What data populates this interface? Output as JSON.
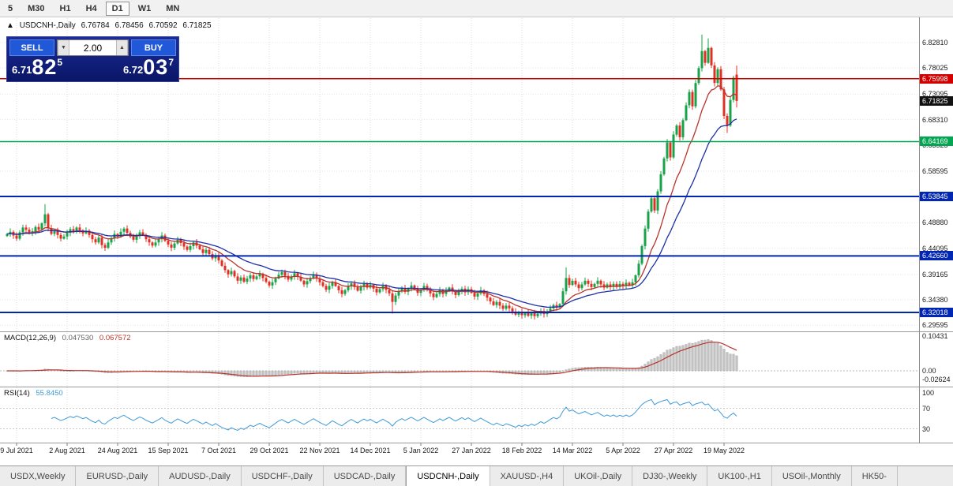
{
  "toolbar": {
    "timeframes": [
      "5",
      "M30",
      "H1",
      "H4",
      "D1",
      "W1",
      "MN"
    ],
    "active": "D1"
  },
  "title": {
    "collapse_icon": "▲",
    "symbol": "USDCNH-,Daily",
    "open": "6.76784",
    "high": "6.78456",
    "low": "6.70592",
    "close": "6.71825"
  },
  "trade_panel": {
    "sell_label": "SELL",
    "buy_label": "BUY",
    "volume": "2.00",
    "volume_down_icon": "▼",
    "volume_up_icon": "▲",
    "sell_price": {
      "main": "6.71",
      "pips": "82",
      "point": "5"
    },
    "buy_price": {
      "main": "6.72",
      "pips": "03",
      "point": "7"
    }
  },
  "tabs": {
    "items": [
      "USDX,Weekly",
      "EURUSD-,Daily",
      "AUDUSD-,Daily",
      "USDCHF-,Daily",
      "USDCAD-,Daily",
      "USDCNH-,Daily",
      "XAUUSD-,H4",
      "UKOil-,Daily",
      "DJ30-,Weekly",
      "UK100-,H1",
      "USOil-,Monthly",
      "HK50-"
    ],
    "active": "USDCNH-,Daily"
  },
  "chart_data": {
    "type": "candlestick",
    "symbol": "USDCNH-",
    "timeframe": "Daily",
    "price_range": [
      6.2861,
      6.874
    ],
    "price_axis_labels": [
      "6.82810",
      "6.78025",
      "6.73095",
      "6.68310",
      "6.63525",
      "6.58595",
      "6.53810",
      "6.48880",
      "6.44095",
      "6.39165",
      "6.34380",
      "6.29595"
    ],
    "x_axis_labels": [
      "9 Jul 2021",
      "2 Aug 2021",
      "24 Aug 2021",
      "15 Sep 2021",
      "7 Oct 2021",
      "29 Oct 2021",
      "22 Nov 2021",
      "14 Dec 2021",
      "5 Jan 2022",
      "27 Jan 2022",
      "18 Feb 2022",
      "14 Mar 2022",
      "5 Apr 2022",
      "27 Apr 2022",
      "19 May 2022"
    ],
    "x_label_bar_indexes": [
      3,
      19,
      35,
      51,
      67,
      83,
      99,
      115,
      131,
      147,
      163,
      179,
      195,
      211,
      227
    ],
    "levels": [
      {
        "value": 6.75998,
        "label": "6.75998",
        "color": "#d40000"
      },
      {
        "value": 6.64169,
        "label": "6.64169",
        "color": "#00a651"
      },
      {
        "value": 6.53845,
        "label": "6.53845",
        "color": "#0026b3"
      },
      {
        "value": 6.4266,
        "label": "6.42660",
        "color": "#0026b3"
      },
      {
        "value": 6.32018,
        "label": "6.32018",
        "color": "#0026b3"
      }
    ],
    "current_price": {
      "value": 6.71825,
      "label": "6.71825",
      "color": "#111111"
    },
    "candles": {
      "up_color": "#18a348",
      "down_color": "#e03024",
      "closes": [
        6.468,
        6.472,
        6.465,
        6.459,
        6.471,
        6.48,
        6.476,
        6.469,
        6.473,
        6.481,
        6.476,
        6.488,
        6.505,
        6.479,
        6.468,
        6.474,
        6.466,
        6.459,
        6.463,
        6.47,
        6.477,
        6.472,
        6.48,
        6.475,
        6.469,
        6.474,
        6.466,
        6.458,
        6.452,
        6.461,
        6.447,
        6.442,
        6.452,
        6.46,
        6.468,
        6.463,
        6.472,
        6.478,
        6.47,
        6.463,
        6.457,
        6.464,
        6.471,
        6.466,
        6.458,
        6.452,
        6.446,
        6.452,
        6.458,
        6.465,
        6.455,
        6.448,
        6.442,
        6.45,
        6.457,
        6.451,
        6.444,
        6.438,
        6.445,
        6.452,
        6.446,
        6.439,
        6.432,
        6.438,
        6.43,
        6.422,
        6.428,
        6.418,
        6.408,
        6.4,
        6.392,
        6.398,
        6.388,
        6.38,
        6.386,
        6.378,
        6.384,
        6.39,
        6.383,
        6.388,
        6.393,
        6.385,
        6.378,
        6.371,
        6.377,
        6.384,
        6.391,
        6.396,
        6.389,
        6.382,
        6.388,
        6.394,
        6.387,
        6.38,
        6.373,
        6.379,
        6.385,
        6.391,
        6.384,
        6.377,
        6.37,
        6.363,
        6.37,
        6.377,
        6.37,
        6.362,
        6.355,
        6.362,
        6.369,
        6.375,
        6.368,
        6.361,
        6.368,
        6.374,
        6.367,
        6.372,
        6.365,
        6.358,
        6.364,
        6.37,
        6.363,
        6.356,
        6.34,
        6.352,
        6.36,
        6.366,
        6.359,
        6.365,
        6.371,
        6.364,
        6.357,
        6.363,
        6.37,
        6.363,
        6.356,
        6.349,
        6.355,
        6.362,
        6.355,
        6.361,
        6.367,
        6.36,
        6.353,
        6.359,
        6.365,
        6.358,
        6.364,
        6.357,
        6.35,
        6.356,
        6.362,
        6.355,
        6.348,
        6.341,
        6.334,
        6.34,
        6.333,
        6.327,
        6.333,
        6.328,
        6.322,
        6.316,
        6.321,
        6.315,
        6.32,
        6.314,
        6.319,
        6.313,
        6.318,
        6.323,
        6.317,
        6.322,
        6.328,
        6.334,
        6.33,
        6.336,
        6.36,
        6.385,
        6.372,
        6.38,
        6.373,
        6.366,
        6.373,
        6.38,
        6.374,
        6.368,
        6.374,
        6.38,
        6.373,
        6.367,
        6.373,
        6.368,
        6.374,
        6.368,
        6.374,
        6.37,
        6.376,
        6.371,
        6.377,
        6.39,
        6.412,
        6.445,
        6.478,
        6.51,
        6.535,
        6.512,
        6.548,
        6.58,
        6.61,
        6.64,
        6.612,
        6.655,
        6.672,
        6.65,
        6.682,
        6.71,
        6.735,
        6.708,
        6.752,
        6.78,
        6.812,
        6.79,
        6.818,
        6.785,
        6.752,
        6.778,
        6.74,
        6.69,
        6.672,
        6.72,
        6.762,
        6.71825
      ],
      "overrides": {
        "12": {
          "high": 6.524
        },
        "122": {
          "low": 6.318
        },
        "177": {
          "high": 6.405
        },
        "220": {
          "high": 6.843
        },
        "222": {
          "high": 6.836
        },
        "228": {
          "low": 6.658
        }
      },
      "last_bar": {
        "open": 6.76784,
        "high": 6.78456,
        "low": 6.70592,
        "close": 6.71825
      }
    },
    "moving_averages": [
      {
        "period": 12,
        "color": "#b8342c"
      },
      {
        "period": 26,
        "color": "#1c2fa6"
      }
    ],
    "macd": {
      "name": "MACD(12,26,9)",
      "value_main": "0.047530",
      "value_signal": "0.067572",
      "axis_labels": [
        "0.10431",
        "0.00",
        "-0.02624"
      ],
      "hist_color": "#c2c2c2",
      "signal_color": "#b8342c"
    },
    "rsi": {
      "name": "RSI(14)",
      "value": "55.8450",
      "axis_labels": [
        "100",
        "70",
        "30"
      ],
      "levels": [
        70,
        30
      ],
      "line_color": "#3f9bd8"
    }
  }
}
